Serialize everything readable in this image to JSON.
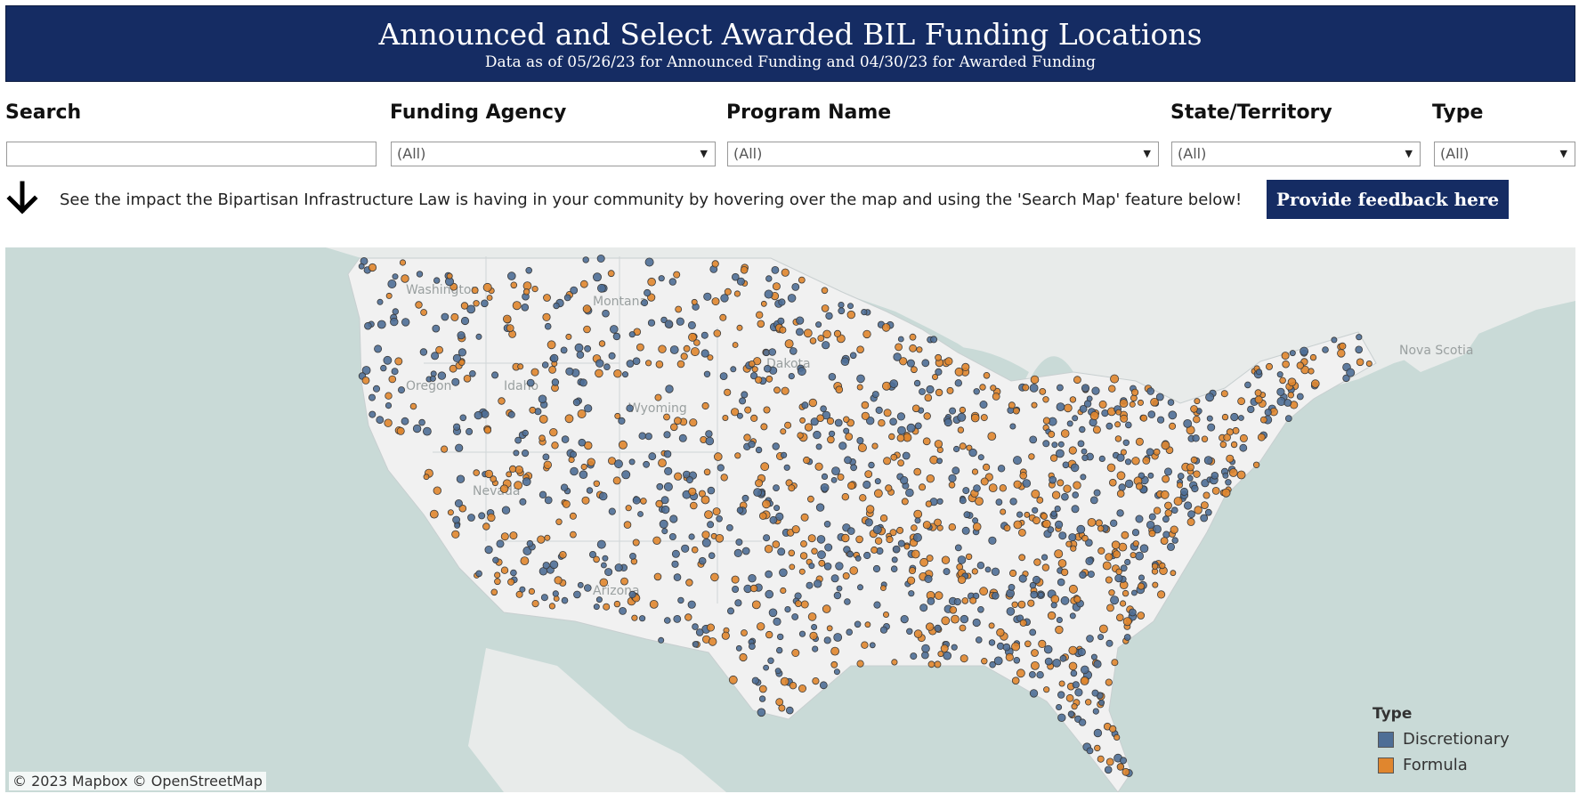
{
  "header": {
    "title": "Announced and Select Awarded BIL Funding Locations",
    "subtitle": "Data as of 05/26/23 for Announced Funding and 04/30/23 for Awarded Funding"
  },
  "filters": {
    "search": {
      "label": "Search",
      "value": ""
    },
    "agency": {
      "label": "Funding Agency",
      "value": "(All)"
    },
    "program": {
      "label": "Program Name",
      "value": "(All)"
    },
    "state": {
      "label": "State/Territory",
      "value": "(All)"
    },
    "type": {
      "label": "Type",
      "value": "(All)"
    }
  },
  "note": "See the impact the Bipartisan Infrastructure Law is having in your community by hovering over the map and using the 'Search Map' feature below!",
  "feedback_button": "Provide feedback here",
  "map": {
    "attribution": "© 2023 Mapbox © OpenStreetMap",
    "place_labels": [
      "Washington",
      "Montana",
      "Oregon",
      "Idaho",
      "Wyoming",
      "Nevada",
      "Dakota",
      "Arizona",
      "Nova Scotia"
    ],
    "legend": {
      "title": "Type",
      "items": [
        {
          "label": "Discretionary",
          "color": "#4e6e96"
        },
        {
          "label": "Formula",
          "color": "#e0862e"
        }
      ]
    }
  }
}
